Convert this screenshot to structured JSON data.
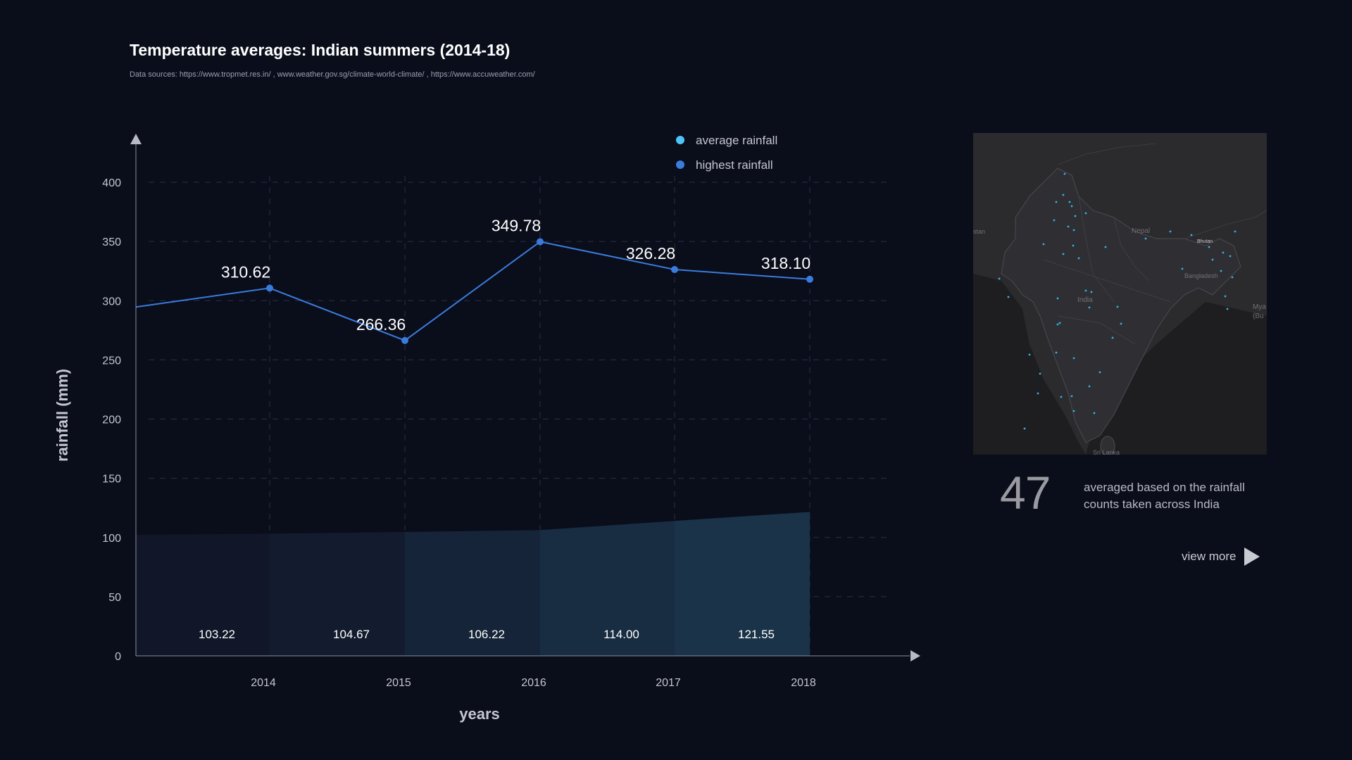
{
  "header": {
    "title": "Temperature averages: Indian summers (2014-18)",
    "sources": "Data sources: https://www.tropmet.res.in/ , www.weather.gov.sg/climate-world-climate/ , https://www.accuweather.com/"
  },
  "chart_data": {
    "type": "line",
    "xlabel": "years",
    "ylabel": "rainfall (mm)",
    "ylim": [
      0,
      400
    ],
    "yticks": [
      0,
      50,
      100,
      150,
      200,
      250,
      300,
      350,
      400
    ],
    "categories": [
      "2014",
      "2015",
      "2016",
      "2017",
      "2018"
    ],
    "grid": true,
    "legend_position": "top-right",
    "series": [
      {
        "name": "average rainfall",
        "kind": "area",
        "color": "#4fc3f7",
        "values": [
          103.22,
          104.67,
          106.22,
          114.0,
          121.55
        ],
        "labels": [
          "103.22",
          "104.67",
          "106.22",
          "114.00",
          "121.55"
        ]
      },
      {
        "name": "highest rainfall",
        "kind": "line",
        "color": "#3a7bdc",
        "values": [
          310.62,
          266.36,
          349.78,
          326.28,
          318.1
        ],
        "labels": [
          "310.62",
          "266.36",
          "349.78",
          "326.28",
          "318.10"
        ]
      }
    ]
  },
  "map": {
    "labels": [
      "Nepal",
      "Bhutan",
      "Bangladesh",
      "India",
      "Sri Lanka",
      "stan",
      "Mya",
      "(Bu"
    ]
  },
  "stat": {
    "number": "47",
    "caption": "averaged based on the rainfall counts taken across India"
  },
  "view_more": {
    "label": "view more"
  },
  "colors": {
    "background": "#0a0d1a",
    "area_fill": "#1b3a52",
    "line": "#3a7bdc",
    "map_bg": "#222225",
    "map_dot": "#2fb4e6"
  }
}
